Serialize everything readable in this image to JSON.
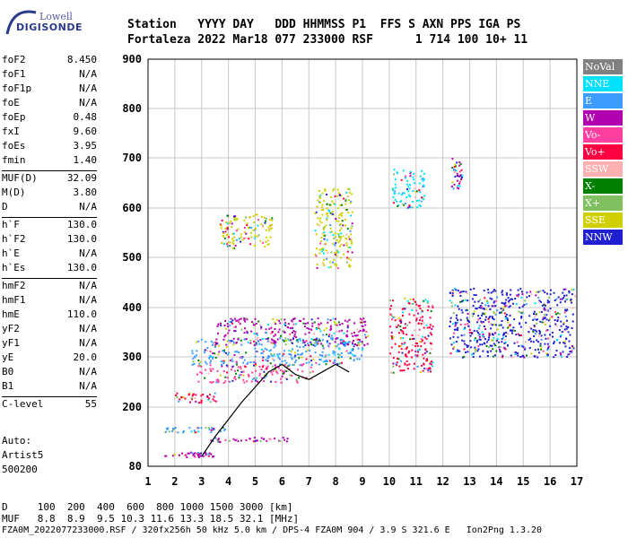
{
  "logo": {
    "line1": "Lowell",
    "line2": "DIGISONDE"
  },
  "header": {
    "labels": "Station   YYYY DAY   DDD HHMMSS P1  FFS S AXN PPS IGA PS",
    "values": "Fortaleza 2022 Mar18 077 233000 RSF      1 714 100 10+ 11"
  },
  "params": [
    {
      "name": "foF2",
      "value": "8.450"
    },
    {
      "name": "foF1",
      "value": "N/A"
    },
    {
      "name": "foF1p",
      "value": "N/A"
    },
    {
      "name": "foE",
      "value": "N/A"
    },
    {
      "name": "foEp",
      "value": "0.48"
    },
    {
      "name": "fxI",
      "value": "9.60"
    },
    {
      "name": "foEs",
      "value": "3.95"
    },
    {
      "name": "fmin",
      "value": "1.40"
    },
    {
      "name": "MUF(D)",
      "value": "32.09"
    },
    {
      "name": "M(D)",
      "value": "3.80"
    },
    {
      "name": "D",
      "value": "N/A"
    },
    {
      "name": "h`F",
      "value": "130.0"
    },
    {
      "name": "h`F2",
      "value": "130.0"
    },
    {
      "name": "h`E",
      "value": "N/A"
    },
    {
      "name": "h`Es",
      "value": "130.0"
    },
    {
      "name": "hmF2",
      "value": "N/A"
    },
    {
      "name": "hmF1",
      "value": "N/A"
    },
    {
      "name": "hmE",
      "value": "110.0"
    },
    {
      "name": "yF2",
      "value": "N/A"
    },
    {
      "name": "yF1",
      "value": "N/A"
    },
    {
      "name": "yE",
      "value": "20.0"
    },
    {
      "name": "B0",
      "value": "N/A"
    },
    {
      "name": "B1",
      "value": "N/A"
    },
    {
      "name": "C-level",
      "value": "55"
    }
  ],
  "auto": {
    "line1": "Auto:",
    "line2": "Artist5",
    "line3": "500200"
  },
  "legend": [
    {
      "label": "NoVal",
      "color": "#808080"
    },
    {
      "label": "NNE",
      "color": "#00e0ff"
    },
    {
      "label": "E",
      "color": "#3c9cff"
    },
    {
      "label": "W",
      "color": "#b000b0"
    },
    {
      "label": "Vo-",
      "color": "#ff40a0"
    },
    {
      "label": "Vo+",
      "color": "#ff0040"
    },
    {
      "label": "SSW",
      "color": "#ffb0b0"
    },
    {
      "label": "X-",
      "color": "#008000"
    },
    {
      "label": "X+",
      "color": "#80c060"
    },
    {
      "label": "SSE",
      "color": "#d0d000"
    },
    {
      "label": "NNW",
      "color": "#2020d0"
    }
  ],
  "footer": {
    "line1": "D     100  200  400  600  800 1000 1500 3000 [km]",
    "line2": "MUF   8.8  8.9  9.5 10.3 11.6 13.3 18.5 32.1 [MHz]",
    "line3": "FZA0M_2022077233000.RSF / 320fx256h 50 kHz 5.0 km / DPS-4 FZA0M 904 / 3.9 S 321.6 E   Ion2Png 1.3.20"
  },
  "chart_data": {
    "type": "scatter",
    "xlabel": "",
    "ylabel": "",
    "xlim": [
      1,
      17
    ],
    "ylim": [
      80,
      900
    ],
    "x_ticks": [
      1,
      2,
      3,
      4,
      5,
      6,
      7,
      8,
      9,
      10,
      11,
      12,
      13,
      14,
      15,
      16,
      17
    ],
    "y_ticks": [
      80,
      200,
      300,
      400,
      500,
      600,
      700,
      800,
      900
    ],
    "grid": true,
    "legend_position": "right",
    "clusters": [
      {
        "x": [
          1.6,
          3.5
        ],
        "y": [
          100,
          110
        ],
        "color": "#b000b0"
      },
      {
        "x": [
          3.2,
          6.2
        ],
        "y": [
          130,
          140
        ],
        "color": "#b000b0"
      },
      {
        "x": [
          1.6,
          4.2
        ],
        "y": [
          150,
          160
        ],
        "color": "#3c9cff"
      },
      {
        "x": [
          2.0,
          3.6
        ],
        "y": [
          210,
          230
        ],
        "color": "#ff0040"
      },
      {
        "x": [
          2.8,
          7.2
        ],
        "y": [
          250,
          285
        ],
        "color": "#ff40a0"
      },
      {
        "x": [
          2.6,
          9.0
        ],
        "y": [
          285,
          340
        ],
        "color": "#3c9cff"
      },
      {
        "x": [
          3.5,
          9.2
        ],
        "y": [
          325,
          380
        ],
        "color": "#b000b0"
      },
      {
        "x": [
          3.6,
          5.6
        ],
        "y": [
          520,
          590
        ],
        "color": "#d0d000"
      },
      {
        "x": [
          7.2,
          8.6
        ],
        "y": [
          480,
          640
        ],
        "color": "#d0d000"
      },
      {
        "x": [
          10.1,
          11.3
        ],
        "y": [
          600,
          680
        ],
        "color": "#00e0ff"
      },
      {
        "x": [
          12.3,
          12.7
        ],
        "y": [
          640,
          700
        ],
        "color": "#b000b0"
      },
      {
        "x": [
          10.0,
          11.6
        ],
        "y": [
          270,
          420
        ],
        "color": "#ff0040"
      },
      {
        "x": [
          12.2,
          16.9
        ],
        "y": [
          300,
          440
        ],
        "color": "#2020d0"
      }
    ],
    "trace": {
      "x": [
        3.0,
        3.5,
        4.0,
        4.5,
        5.0,
        5.5,
        6.0,
        6.5,
        7.0,
        7.5,
        8.0,
        8.5
      ],
      "y": [
        100,
        140,
        175,
        210,
        240,
        270,
        285,
        265,
        255,
        270,
        285,
        270
      ]
    }
  }
}
